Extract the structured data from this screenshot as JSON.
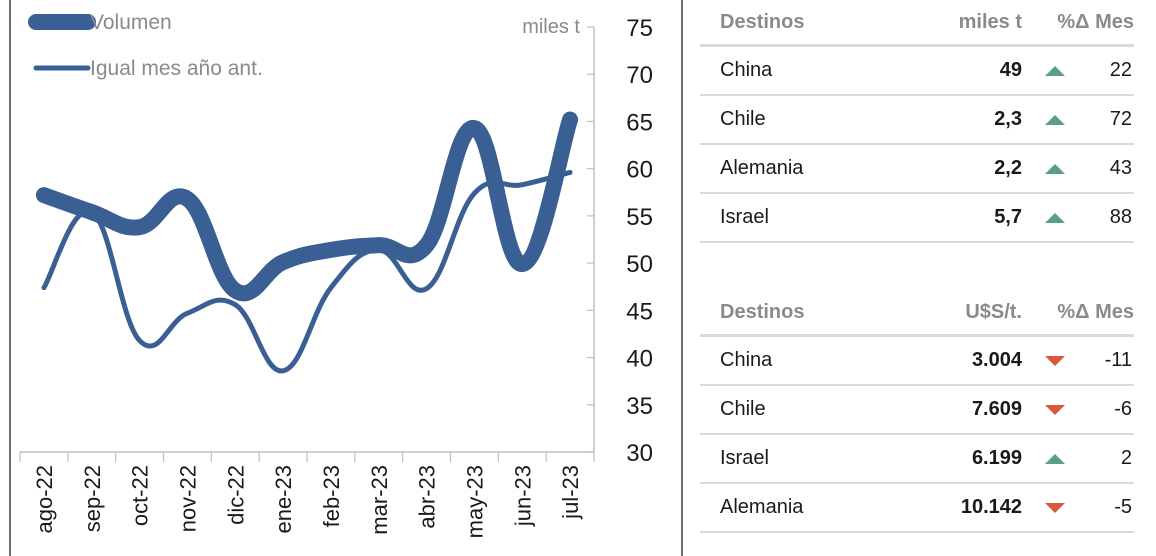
{
  "chart_data": {
    "type": "line",
    "categories": [
      "ago-22",
      "sep-22",
      "oct-22",
      "nov-22",
      "dic-22",
      "ene-23",
      "feb-23",
      "mar-23",
      "abr-23",
      "may-23",
      "jun-23",
      "jul-23"
    ],
    "series": [
      {
        "name": "Volumen",
        "values": [
          57.2,
          55.4,
          53.8,
          56.8,
          47.1,
          50.1,
          51.4,
          51.9,
          51.9,
          64.3,
          49.9,
          65.2
        ],
        "color": "#3a5f94"
      },
      {
        "name": "Igual mes año ant.",
        "values": [
          47.4,
          55.4,
          41.8,
          44.7,
          45.6,
          38.6,
          47.4,
          51.4,
          47.3,
          57.4,
          58.3,
          59.6
        ],
        "color": "#3a5f94"
      }
    ],
    "yunit": "miles t",
    "ylim": [
      30,
      75
    ],
    "yticks": [
      30,
      35,
      40,
      45,
      50,
      55,
      60,
      65,
      70,
      75
    ],
    "grid": false,
    "legend": "top-left"
  },
  "table_volume": {
    "headers": [
      "Destinos",
      "miles t",
      "%Δ Mes"
    ],
    "rows": [
      {
        "name": "China",
        "value": "49",
        "dir": "up",
        "pct": "22"
      },
      {
        "name": "Chile",
        "value": "2,3",
        "dir": "up",
        "pct": "72"
      },
      {
        "name": "Alemania",
        "value": "2,2",
        "dir": "up",
        "pct": "43"
      },
      {
        "name": "Israel",
        "value": "5,7",
        "dir": "up",
        "pct": "88"
      }
    ]
  },
  "table_price": {
    "headers": [
      "Destinos",
      "U$S/t.",
      "%Δ Mes"
    ],
    "rows": [
      {
        "name": "China",
        "value": "3.004",
        "dir": "down",
        "pct": "-11"
      },
      {
        "name": "Chile",
        "value": "7.609",
        "dir": "down",
        "pct": "-6"
      },
      {
        "name": "Israel",
        "value": "6.199",
        "dir": "up",
        "pct": "2"
      },
      {
        "name": "Alemania",
        "value": "10.142",
        "dir": "down",
        "pct": "-5"
      }
    ]
  }
}
